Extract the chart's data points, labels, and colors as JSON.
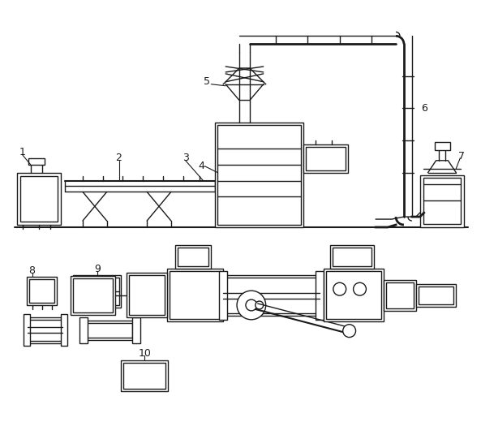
{
  "bg_color": "#ffffff",
  "lc": "#1a1a1a",
  "lw": 1.0,
  "fig_w": 5.93,
  "fig_h": 5.52
}
